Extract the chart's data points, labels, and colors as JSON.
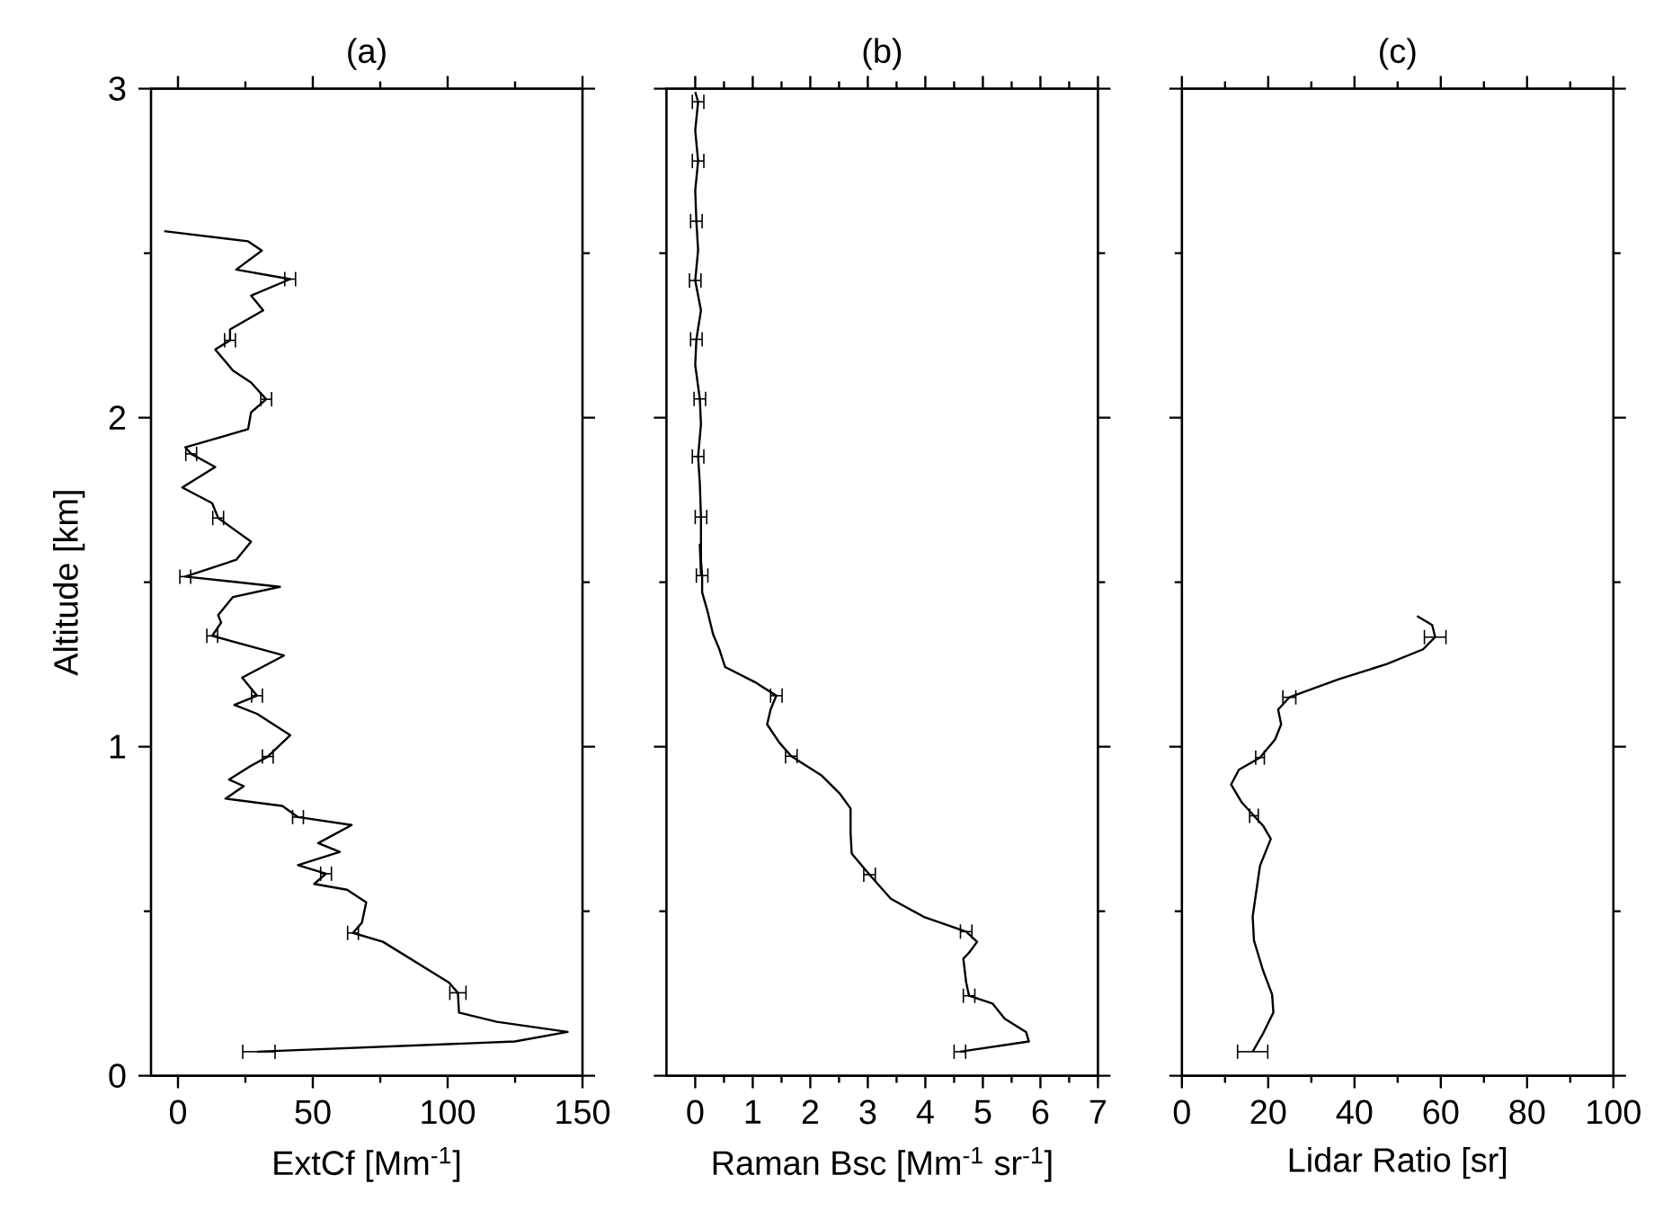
{
  "chart_data": [
    {
      "type": "line",
      "title": "(a)",
      "xlabel": "ExtCf [Mm$^{-1}$]",
      "ylabel": "Altitude [km]",
      "xlim": [
        -10,
        150
      ],
      "xticks": [
        0,
        {
          "value": 25,
          "label": null
        },
        50,
        {
          "value": 75,
          "label": null
        },
        100,
        {
          "value": 125,
          "label": null
        },
        150
      ],
      "ylim": [
        0,
        3
      ],
      "yticks": [
        0,
        {
          "value": 0.5,
          "label": null
        },
        1,
        {
          "value": 1.5,
          "label": null
        },
        2,
        {
          "value": 2.5,
          "label": null
        },
        3
      ],
      "series": [
        {
          "color": "#000000",
          "x": [
            29.3,
            124.9,
            144.5,
            118.2,
            104.2,
            103.8,
            100.5,
            76,
            64.9,
            68.2,
            69.8,
            62.7,
            50.5,
            54.9,
            44.5,
            60.0,
            52.0,
            64.4,
            44.5,
            38.7,
            17.6,
            24.4,
            18.9,
            26.7,
            33.3,
            41.6,
            29.3,
            20.9,
            29.3,
            23.8,
            39.3,
            12.7,
            16.0,
            14.9,
            20.4,
            37.8,
            2.7,
            21.6,
            27.1,
            14.9,
            12.7,
            1.6,
            13.8,
            4.9,
            2.7,
            26,
            27.1,
            32.7,
            27.1,
            20.4,
            13.8,
            19.3,
            19.3,
            31.6,
            27.1,
            41.6,
            21.6,
            31.1,
            26,
            -5.1
          ],
          "values": [
            0.073,
            0.104,
            0.133,
            0.164,
            0.192,
            0.252,
            0.283,
            0.407,
            0.434,
            0.465,
            0.527,
            0.565,
            0.583,
            0.614,
            0.64,
            0.68,
            0.707,
            0.762,
            0.786,
            0.82,
            0.842,
            0.88,
            0.9,
            0.94,
            0.97,
            1.035,
            1.1,
            1.127,
            1.155,
            1.21,
            1.277,
            1.337,
            1.377,
            1.4,
            1.455,
            1.486,
            1.517,
            1.568,
            1.623,
            1.695,
            1.74,
            1.788,
            1.85,
            1.89,
            1.91,
            1.965,
            2.016,
            2.056,
            2.107,
            2.143,
            2.207,
            2.235,
            2.268,
            2.326,
            2.371,
            2.421,
            2.45,
            2.508,
            2.536,
            2.567
          ],
          "xerrors": [
            [
              24,
              36
            ],
            null,
            null,
            null,
            null,
            3,
            null,
            null,
            2,
            null,
            null,
            null,
            null,
            2,
            null,
            null,
            null,
            null,
            2,
            null,
            null,
            null,
            null,
            null,
            2,
            null,
            null,
            null,
            2,
            null,
            null,
            2,
            null,
            null,
            null,
            null,
            2,
            null,
            null,
            2,
            null,
            null,
            null,
            2,
            null,
            null,
            null,
            2,
            null,
            null,
            null,
            2,
            null,
            null,
            null,
            2,
            null,
            null,
            null,
            null
          ]
        }
      ]
    },
    {
      "type": "line",
      "title": "(b)",
      "xlabel": "Raman Bsc [Mm$^{-1}$ sr$^{-1}$]",
      "xlim": [
        -0.5,
        7
      ],
      "xticks": [
        0,
        {
          "value": 0.5,
          "label": null
        },
        1,
        {
          "value": 1.5,
          "label": null
        },
        2,
        {
          "value": 2.5,
          "label": null
        },
        3,
        {
          "value": 3.5,
          "label": null
        },
        4,
        {
          "value": 4.5,
          "label": null
        },
        5,
        {
          "value": 5.5,
          "label": null
        },
        6,
        {
          "value": 6.5,
          "label": null
        },
        7
      ],
      "ylim": [
        0,
        3
      ],
      "yticks": [
        0,
        {
          "value": 0.5,
          "label": null
        },
        1,
        {
          "value": 1.5,
          "label": null
        },
        2,
        {
          "value": 2.5,
          "label": null
        },
        3
      ],
      "tick_labels": "x",
      "series": [
        {
          "color": "#000000",
          "x": [
            4.6,
            5.8,
            5.75,
            5.38,
            5.17,
            4.76,
            4.71,
            4.66,
            4.76,
            4.9,
            4.71,
            3.97,
            3.4,
            3.03,
            2.72,
            2.7,
            2.7,
            2.51,
            2.2,
            1.67,
            1.46,
            1.25,
            1.31,
            1.41,
            1.04,
            0.52,
            0.42,
            0.31,
            0.21,
            0.12,
            0.12,
            0.08,
            0.1,
            0.1,
            0.08,
            0.05,
            0.1,
            0.08,
            0.0,
            0.02,
            0.1,
            0.0,
            0.05,
            0.02,
            0.0,
            0.05,
            0.0,
            0.05,
            0.0
          ],
          "values": [
            0.073,
            0.104,
            0.133,
            0.173,
            0.219,
            0.243,
            0.283,
            0.356,
            0.374,
            0.407,
            0.438,
            0.483,
            0.538,
            0.611,
            0.675,
            0.739,
            0.812,
            0.858,
            0.912,
            0.971,
            1.013,
            1.068,
            1.113,
            1.155,
            1.196,
            1.242,
            1.296,
            1.342,
            1.414,
            1.469,
            1.52,
            1.614,
            1.524,
            1.698,
            1.8,
            1.882,
            1.98,
            2.057,
            2.16,
            2.238,
            2.326,
            2.417,
            2.509,
            2.597,
            2.69,
            2.78,
            2.873,
            2.96,
            2.99
          ],
          "xerrors": [
            0.1,
            null,
            null,
            null,
            null,
            0.1,
            null,
            null,
            null,
            null,
            0.1,
            null,
            null,
            0.1,
            null,
            null,
            null,
            null,
            null,
            0.1,
            null,
            null,
            null,
            0.1,
            null,
            null,
            null,
            null,
            null,
            null,
            0.1,
            null,
            null,
            0.1,
            null,
            0.1,
            null,
            0.1,
            null,
            0.1,
            null,
            0.1,
            null,
            0.1,
            null,
            0.1,
            null,
            0.1,
            null
          ]
        }
      ]
    },
    {
      "type": "line",
      "title": "(c)",
      "xlabel": "Lidar Ratio [sr]",
      "xlim": [
        0,
        100
      ],
      "xticks": [
        0,
        {
          "value": 10,
          "label": null
        },
        20,
        {
          "value": 30,
          "label": null
        },
        40,
        {
          "value": 50,
          "label": null
        },
        60,
        {
          "value": 70,
          "label": null
        },
        80,
        {
          "value": 90,
          "label": null
        },
        100
      ],
      "ylim": [
        0,
        3
      ],
      "yticks": [
        0,
        {
          "value": 0.5,
          "label": null
        },
        1,
        {
          "value": 1.5,
          "label": null
        },
        2,
        {
          "value": 2.5,
          "label": null
        },
        3
      ],
      "tick_labels": "x",
      "series": [
        {
          "color": "#000000",
          "x": [
            16.4,
            18.8,
            21.2,
            20.9,
            18.8,
            16.7,
            16.4,
            17.8,
            18.1,
            20.6,
            18.8,
            16.7,
            13.9,
            11.4,
            13.2,
            18.1,
            21.6,
            23.0,
            22.3,
            24.9,
            36.3,
            47.5,
            55.9,
            58.7,
            58.0,
            54.5
          ],
          "values": [
            0.073,
            0.128,
            0.192,
            0.247,
            0.32,
            0.411,
            0.484,
            0.611,
            0.638,
            0.72,
            0.76,
            0.79,
            0.83,
            0.885,
            0.93,
            0.967,
            1.022,
            1.068,
            1.113,
            1.15,
            1.205,
            1.251,
            1.296,
            1.333,
            1.37,
            1.397
          ],
          "xerrors": [
            3.5,
            null,
            null,
            null,
            null,
            null,
            null,
            null,
            null,
            null,
            null,
            1,
            null,
            null,
            null,
            1,
            null,
            null,
            null,
            1.5,
            null,
            null,
            null,
            2.5,
            null,
            null
          ]
        }
      ]
    }
  ]
}
